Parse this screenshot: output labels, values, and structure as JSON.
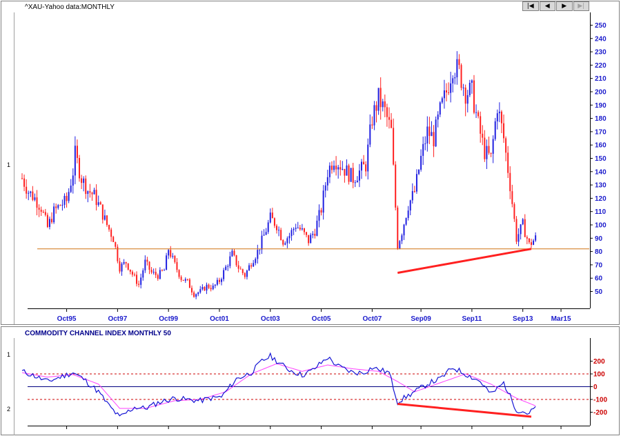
{
  "colors": {
    "up": "#1f1fe0",
    "down": "#ff2020",
    "support": "#d07010",
    "trend": "#ff2020",
    "cci": "#1414d4",
    "cci_ma": "#ff40ff",
    "ref100": "#cc0000",
    "zero": "#000080",
    "axis_text": "#1a1acc",
    "cci_axis_text": "#cc0000"
  },
  "nav": {
    "first": "|◀",
    "prev": "◀",
    "next": "▶",
    "last": "▶|"
  },
  "upper": {
    "title": "^XAU-Yahoo data:MONTHLY",
    "left_label": "1",
    "y_ticks": [
      "250",
      "240",
      "230",
      "220",
      "210",
      "200",
      "190",
      "180",
      "170",
      "160",
      "150",
      "140",
      "130",
      "120",
      "110",
      "100",
      "90",
      "80",
      "70",
      "60",
      "50"
    ],
    "x_ticks": [
      "Oct95",
      "Oct97",
      "Oct99",
      "Oct01",
      "Oct03",
      "Oct05",
      "Oct07",
      "Sep09",
      "Sep11",
      "Sep13",
      "Mar15"
    ]
  },
  "lower": {
    "title": "COMMODITY CHANNEL INDEX MONTHLY 50",
    "left_label_top": "1",
    "left_label_bottom": "2",
    "y_ticks": [
      "200",
      "100",
      "0",
      "-100",
      "-200"
    ]
  },
  "chart_data": [
    {
      "type": "candlestick",
      "title": "^XAU-Yahoo data:MONTHLY",
      "x_range": [
        "1994-01",
        "2015-06"
      ],
      "ylim": [
        40,
        255
      ],
      "support_level": 82,
      "trendline": {
        "from": [
          "2008-10",
          64
        ],
        "to": [
          "2014-01",
          82
        ]
      },
      "close_series": [
        [
          "1994-01",
          135
        ],
        [
          "1994-04",
          125
        ],
        [
          "1994-07",
          120
        ],
        [
          "1994-10",
          113
        ],
        [
          "1995-01",
          98
        ],
        [
          "1995-04",
          110
        ],
        [
          "1995-07",
          115
        ],
        [
          "1995-10",
          118
        ],
        [
          "1996-01",
          140
        ],
        [
          "1996-02",
          153
        ],
        [
          "1996-05",
          135
        ],
        [
          "1996-08",
          126
        ],
        [
          "1996-11",
          122
        ],
        [
          "1997-02",
          112
        ],
        [
          "1997-05",
          100
        ],
        [
          "1997-08",
          90
        ],
        [
          "1997-11",
          68
        ],
        [
          "1998-02",
          72
        ],
        [
          "1998-05",
          63
        ],
        [
          "1998-08",
          55
        ],
        [
          "1998-11",
          72
        ],
        [
          "1999-02",
          64
        ],
        [
          "1999-05",
          62
        ],
        [
          "1999-08",
          66
        ],
        [
          "1999-10",
          82
        ],
        [
          "2000-01",
          70
        ],
        [
          "2000-04",
          60
        ],
        [
          "2000-07",
          57
        ],
        [
          "2000-10",
          48
        ],
        [
          "2001-01",
          50
        ],
        [
          "2001-04",
          54
        ],
        [
          "2001-07",
          53
        ],
        [
          "2001-10",
          58
        ],
        [
          "2002-01",
          68
        ],
        [
          "2002-04",
          78
        ],
        [
          "2002-07",
          68
        ],
        [
          "2002-10",
          62
        ],
        [
          "2003-01",
          72
        ],
        [
          "2003-04",
          80
        ],
        [
          "2003-07",
          92
        ],
        [
          "2003-10",
          105
        ],
        [
          "2004-01",
          100
        ],
        [
          "2004-04",
          88
        ],
        [
          "2004-07",
          92
        ],
        [
          "2004-10",
          100
        ],
        [
          "2005-01",
          95
        ],
        [
          "2005-04",
          88
        ],
        [
          "2005-07",
          96
        ],
        [
          "2005-10",
          112
        ],
        [
          "2006-01",
          140
        ],
        [
          "2006-04",
          150
        ],
        [
          "2006-07",
          145
        ],
        [
          "2006-10",
          140
        ],
        [
          "2007-01",
          135
        ],
        [
          "2007-04",
          140
        ],
        [
          "2007-07",
          145
        ],
        [
          "2007-10",
          180
        ],
        [
          "2008-01",
          195
        ],
        [
          "2008-04",
          185
        ],
        [
          "2008-07",
          170
        ],
        [
          "2008-10",
          85
        ],
        [
          "2008-12",
          95
        ],
        [
          "2009-03",
          115
        ],
        [
          "2009-06",
          125
        ],
        [
          "2009-09",
          150
        ],
        [
          "2009-12",
          170
        ],
        [
          "2010-03",
          165
        ],
        [
          "2010-06",
          185
        ],
        [
          "2010-09",
          200
        ],
        [
          "2010-12",
          220
        ],
        [
          "2011-03",
          215
        ],
        [
          "2011-06",
          200
        ],
        [
          "2011-09",
          200
        ],
        [
          "2011-12",
          175
        ],
        [
          "2012-03",
          155
        ],
        [
          "2012-06",
          150
        ],
        [
          "2012-09",
          190
        ],
        [
          "2012-12",
          165
        ],
        [
          "2013-03",
          130
        ],
        [
          "2013-06",
          90
        ],
        [
          "2013-09",
          100
        ],
        [
          "2013-12",
          85
        ],
        [
          "2014-03",
          90
        ]
      ]
    },
    {
      "type": "line",
      "title": "COMMODITY CHANNEL INDEX MONTHLY 50",
      "ylim": [
        -280,
        280
      ],
      "reference_lines": [
        100,
        0,
        -100
      ],
      "trendline": {
        "from": [
          "2008-10",
          -135
        ],
        "to": [
          "2014-01",
          -235
        ]
      },
      "series": [
        {
          "values": [
            [
              "1994-01",
              120
            ],
            [
              "1994-06",
              90
            ],
            [
              "1995-01",
              40
            ],
            [
              "1995-06",
              70
            ],
            [
              "1996-01",
              110
            ],
            [
              "1996-06",
              60
            ],
            [
              "1997-01",
              -40
            ],
            [
              "1997-06",
              -150
            ],
            [
              "1997-11",
              -240
            ],
            [
              "1998-06",
              -160
            ],
            [
              "1998-11",
              -170
            ],
            [
              "1999-06",
              -120
            ],
            [
              "2000-01",
              -90
            ],
            [
              "2000-06",
              -100
            ],
            [
              "2001-01",
              -110
            ],
            [
              "2001-06",
              -90
            ],
            [
              "2001-11",
              -80
            ],
            [
              "2002-06",
              60
            ],
            [
              "2003-01",
              110
            ],
            [
              "2003-06",
              200
            ],
            [
              "2003-10",
              240
            ],
            [
              "2004-06",
              140
            ],
            [
              "2005-01",
              90
            ],
            [
              "2005-06",
              130
            ],
            [
              "2006-01",
              230
            ],
            [
              "2006-06",
              160
            ],
            [
              "2007-01",
              110
            ],
            [
              "2007-06",
              110
            ],
            [
              "2007-10",
              150
            ],
            [
              "2008-06",
              110
            ],
            [
              "2008-10",
              -120
            ],
            [
              "2009-06",
              -40
            ],
            [
              "2010-01",
              30
            ],
            [
              "2010-06",
              60
            ],
            [
              "2010-12",
              150
            ],
            [
              "2011-06",
              100
            ],
            [
              "2012-01",
              40
            ],
            [
              "2012-06",
              -60
            ],
            [
              "2012-12",
              30
            ],
            [
              "2013-06",
              -180
            ],
            [
              "2013-12",
              -210
            ],
            [
              "2014-03",
              -160
            ]
          ]
        },
        {
          "values": [
            [
              "1994-01",
              110
            ],
            [
              "1995-01",
              75
            ],
            [
              "1996-01",
              95
            ],
            [
              "1997-01",
              20
            ],
            [
              "1997-11",
              -170
            ],
            [
              "1998-11",
              -170
            ],
            [
              "2000-01",
              -110
            ],
            [
              "2001-01",
              -100
            ],
            [
              "2002-01",
              -40
            ],
            [
              "2003-01",
              100
            ],
            [
              "2004-01",
              180
            ],
            [
              "2005-01",
              120
            ],
            [
              "2006-01",
              170
            ],
            [
              "2007-01",
              140
            ],
            [
              "2008-01",
              120
            ],
            [
              "2008-10",
              40
            ],
            [
              "2009-06",
              -40
            ],
            [
              "2010-06",
              30
            ],
            [
              "2011-06",
              100
            ],
            [
              "2012-06",
              20
            ],
            [
              "2013-06",
              -90
            ],
            [
              "2014-03",
              -150
            ]
          ]
        }
      ]
    }
  ]
}
